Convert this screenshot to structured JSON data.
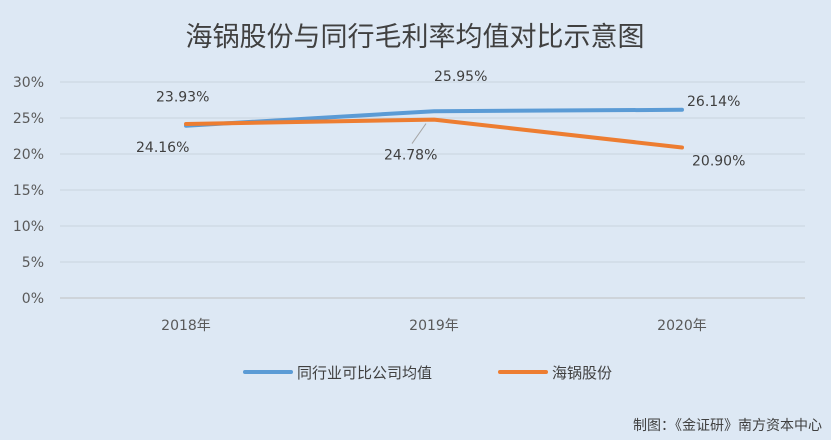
{
  "chart_data": {
    "type": "line",
    "title": "海锅股份与同行毛利率均值对比示意图",
    "categories": [
      "2018年",
      "2019年",
      "2020年"
    ],
    "series": [
      {
        "name": "同行业可比公司均值",
        "values": [
          23.93,
          25.95,
          26.14
        ],
        "labels": [
          "23.93%",
          "25.95%",
          "26.14%"
        ],
        "color": "#5b9bd5"
      },
      {
        "name": "海锅股份",
        "values": [
          24.16,
          24.78,
          20.9
        ],
        "labels": [
          "24.16%",
          "24.78%",
          "20.90%"
        ],
        "color": "#ed7d31"
      }
    ],
    "ylim": [
      0,
      30
    ],
    "yticks": [
      "0%",
      "5%",
      "10%",
      "15%",
      "20%",
      "25%",
      "30%"
    ],
    "grid": true,
    "legend_position": "bottom"
  },
  "credit": "制图：《金证研》南方资本中心"
}
